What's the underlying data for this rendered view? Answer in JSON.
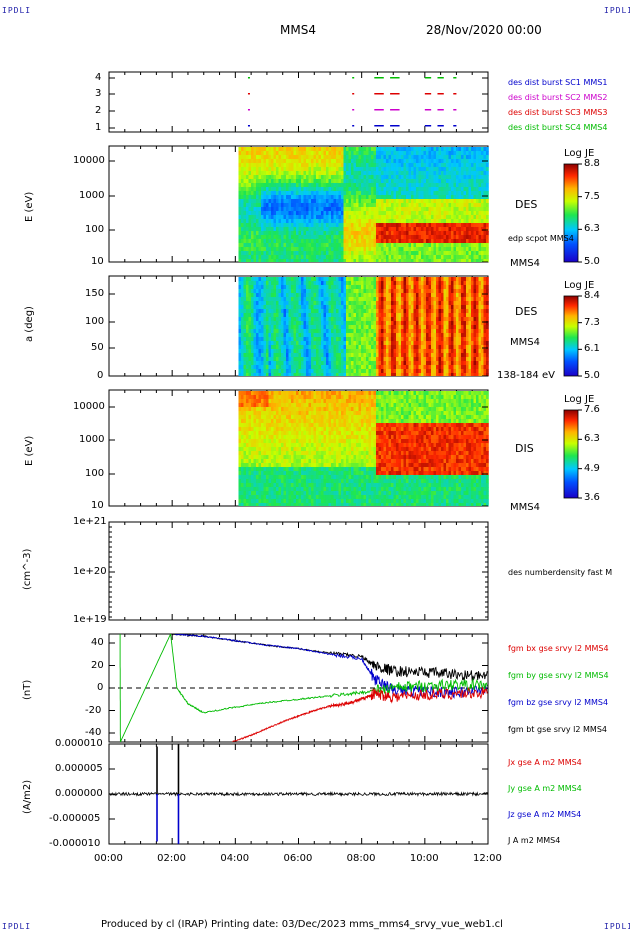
{
  "corner_tl": "IPDLI",
  "corner_tr": "IPDLI",
  "corner_bl": "IPDLI",
  "corner_br": "IPDLI",
  "header": {
    "spacecraft": "MMS4",
    "date": "28/Nov/2020 00:00"
  },
  "footer": "Produced by cl (IRAP)   Printing date: 03/Dec/2023   mms_mms4_srvy_vue_web1.cl",
  "x_ticks": [
    "00:00",
    "02:00",
    "04:00",
    "06:00",
    "08:00",
    "10:00",
    "12:00"
  ],
  "colors": {
    "blue": "#0000cc",
    "magenta": "#cc00cc",
    "red": "#dd0000",
    "green": "#00bb00",
    "black": "#000000"
  },
  "chart_data": [
    {
      "type": "scatter",
      "panel": "burst availability",
      "y_ticks": [
        "1",
        "2",
        "3",
        "4"
      ],
      "x_range": [
        0,
        12
      ],
      "legend": [
        {
          "name": "des dist burst SC1 MMS1",
          "color": "#0000cc"
        },
        {
          "name": "des dist burst SC2 MMS2",
          "color": "#cc00cc"
        },
        {
          "name": "des dist burst SC3 MMS3",
          "color": "#dd0000"
        },
        {
          "name": "des dist burst SC4 MMS4",
          "color": "#00bb00"
        }
      ],
      "segments_hours": [
        [
          4.4,
          4.45
        ],
        [
          7.7,
          7.72
        ],
        [
          8.4,
          8.7
        ],
        [
          8.9,
          9.2
        ],
        [
          10.0,
          10.2
        ],
        [
          10.4,
          10.6
        ],
        [
          10.9,
          11.0
        ]
      ]
    },
    {
      "type": "heatmap",
      "panel": "electron energy spectrogram",
      "ylabel": "E (eV)",
      "y_ticks": [
        "10",
        "100",
        "1000",
        "10000"
      ],
      "side_label": "DES",
      "side_sub": "edp scpot MMS4",
      "side_bottom": "MMS4",
      "colorbar": {
        "title": "Log JE",
        "ticks": [
          "8.8",
          "7.5",
          "6.3",
          "5.0"
        ]
      },
      "data_start_hour": 4.1
    },
    {
      "type": "heatmap",
      "panel": "electron pitch angle",
      "ylabel": "a (deg)",
      "y_ticks": [
        "0",
        "50",
        "100",
        "150"
      ],
      "side_label": "DES",
      "side_sub": "MMS4",
      "side_bottom": "138-184 eV",
      "colorbar": {
        "title": "Log JE",
        "ticks": [
          "8.4",
          "7.3",
          "6.1",
          "5.0"
        ]
      },
      "data_start_hour": 4.1
    },
    {
      "type": "heatmap",
      "panel": "ion energy spectrogram",
      "ylabel": "E (eV)",
      "y_ticks": [
        "10",
        "100",
        "1000",
        "10000"
      ],
      "side_label": "DIS",
      "side_bottom": "MMS4",
      "colorbar": {
        "title": "Log JE",
        "ticks": [
          "7.6",
          "6.3",
          "4.9",
          "3.6"
        ]
      },
      "data_start_hour": 4.1
    },
    {
      "type": "line",
      "panel": "number density",
      "ylabel": "(cm^-3)",
      "y_ticks": [
        "1e+19",
        "1e+20",
        "1e+21"
      ],
      "legend": [
        {
          "name": "des numberdensity fast M",
          "color": "#000000"
        }
      ],
      "series": []
    },
    {
      "type": "line",
      "panel": "magnetic field",
      "ylabel": "(nT)",
      "y_ticks": [
        "-40",
        "-20",
        "0",
        "20",
        "40"
      ],
      "ylim": [
        -48,
        48
      ],
      "x_range": [
        0,
        12
      ],
      "legend": [
        {
          "name": "fgm bx gse srvy l2 MMS4",
          "color": "#dd0000"
        },
        {
          "name": "fgm by gse srvy l2 MMS4",
          "color": "#00bb00"
        },
        {
          "name": "fgm bz gse srvy l2 MMS4",
          "color": "#0000cc"
        },
        {
          "name": "fgm bt gse srvy l2 MMS4",
          "color": "#000000"
        }
      ],
      "series": [
        {
          "color": "#000000",
          "x": [
            2.0,
            3.0,
            4.0,
            5.0,
            6.0,
            7.0,
            8.0,
            8.4,
            9.0,
            10.0,
            11.0,
            12.0
          ],
          "y": [
            48,
            46,
            42,
            38,
            35,
            31,
            28,
            20,
            15,
            14,
            12,
            10
          ]
        },
        {
          "color": "#0000cc",
          "x": [
            2.0,
            3.0,
            4.0,
            5.0,
            6.0,
            7.0,
            8.0,
            8.4,
            9.0,
            10.0,
            11.0,
            12.0
          ],
          "y": [
            48,
            46,
            42,
            38,
            35,
            30,
            26,
            8,
            -2,
            -3,
            -4,
            -1
          ]
        },
        {
          "color": "#00bb00",
          "x": [
            0.35,
            0.36,
            1.95,
            2.15,
            2.5,
            3.0,
            4.0,
            5.0,
            6.0,
            7.0,
            8.0,
            9.0,
            10.0,
            11.0,
            12.0
          ],
          "y": [
            48,
            -48,
            48,
            0,
            -14,
            -22,
            -17,
            -13,
            -10,
            -7,
            -4,
            0,
            2,
            3,
            2
          ]
        },
        {
          "color": "#dd0000",
          "x": [
            3.9,
            4.5,
            5.0,
            5.5,
            6.0,
            6.5,
            7.0,
            7.5,
            8.0,
            8.4,
            9.0,
            10.0,
            11.0,
            12.0
          ],
          "y": [
            -48,
            -42,
            -36,
            -30,
            -25,
            -20,
            -16,
            -14,
            -10,
            -5,
            -8,
            -6,
            -5,
            -4
          ]
        }
      ]
    },
    {
      "type": "line",
      "panel": "current density",
      "ylabel": "(A/m2)",
      "y_ticks": [
        "-0.000010",
        "-0.000005",
        "0.000000",
        "0.000005",
        "0.000010"
      ],
      "ylim": [
        -1e-05,
        1e-05
      ],
      "legend": [
        {
          "name": "Jx gse A m2 MMS4",
          "color": "#dd0000"
        },
        {
          "name": "Jy gse A m2 MMS4",
          "color": "#00bb00"
        },
        {
          "name": "Jz gse A m2 MMS4",
          "color": "#0000cc"
        },
        {
          "name": "J A m2 MMS4",
          "color": "#000000"
        }
      ],
      "spikes": [
        {
          "color": "#000000",
          "x": 1.52,
          "y": 9.5e-06
        },
        {
          "color": "#0000cc",
          "x": 1.52,
          "y": -9.5e-06
        },
        {
          "color": "#000000",
          "x": 2.2,
          "y": 1e-05
        },
        {
          "color": "#0000cc",
          "x": 2.2,
          "y": -1e-05
        }
      ]
    }
  ]
}
